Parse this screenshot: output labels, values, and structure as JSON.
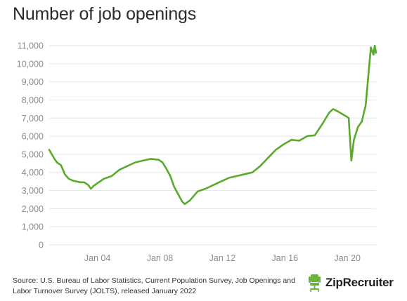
{
  "title": "Number of job openings",
  "source_text": "Source: U.S. Bureau of Labor Statistics, Current Population Survey, Job Openings and Labor Turnover Survey (JOLTS), released January 2022",
  "brand": {
    "name": "ZipRecruiter",
    "icon": "ziprecruiter-chair-logo-icon",
    "color": "#6cb33f"
  },
  "colors": {
    "line": "#5aaa2e",
    "grid": "#e6e6e6",
    "tick_text": "#8c8c8c"
  },
  "chart_data": {
    "type": "line",
    "title": "Number of job openings",
    "xlabel": "",
    "ylabel": "",
    "ylim": [
      0,
      11000
    ],
    "xlim": [
      "2000-12",
      "2021-11"
    ],
    "grid": true,
    "legend": "none",
    "yticks": [
      {
        "value": 0,
        "label": "0"
      },
      {
        "value": 1000,
        "label": "1,000"
      },
      {
        "value": 2000,
        "label": "2,000"
      },
      {
        "value": 3000,
        "label": "3,000"
      },
      {
        "value": 4000,
        "label": "4,000"
      },
      {
        "value": 5000,
        "label": "5,000"
      },
      {
        "value": 6000,
        "label": "6,000"
      },
      {
        "value": 7000,
        "label": "7,000"
      },
      {
        "value": 8000,
        "label": "8,000"
      },
      {
        "value": 9000,
        "label": "9,000"
      },
      {
        "value": 10000,
        "label": "10,000"
      },
      {
        "value": 11000,
        "label": "11,000"
      }
    ],
    "xticks": [
      {
        "value": "2004-01",
        "label": "Jan 04"
      },
      {
        "value": "2008-01",
        "label": "Jan 08"
      },
      {
        "value": "2012-01",
        "label": "Jan 12"
      },
      {
        "value": "2016-01",
        "label": "Jan 16"
      },
      {
        "value": "2020-01",
        "label": "Jan 20"
      }
    ],
    "series": [
      {
        "points": [
          [
            "2000-12",
            5250
          ],
          [
            "2001-02",
            5000
          ],
          [
            "2001-04",
            4750
          ],
          [
            "2001-06",
            4550
          ],
          [
            "2001-09",
            4400
          ],
          [
            "2001-12",
            3900
          ],
          [
            "2002-03",
            3650
          ],
          [
            "2002-06",
            3550
          ],
          [
            "2002-09",
            3500
          ],
          [
            "2002-12",
            3450
          ],
          [
            "2003-03",
            3450
          ],
          [
            "2003-06",
            3300
          ],
          [
            "2003-08",
            3100
          ],
          [
            "2003-10",
            3250
          ],
          [
            "2004-01",
            3400
          ],
          [
            "2004-06",
            3650
          ],
          [
            "2004-12",
            3800
          ],
          [
            "2005-06",
            4150
          ],
          [
            "2005-12",
            4350
          ],
          [
            "2006-06",
            4550
          ],
          [
            "2006-12",
            4650
          ],
          [
            "2007-06",
            4750
          ],
          [
            "2007-12",
            4700
          ],
          [
            "2008-03",
            4550
          ],
          [
            "2008-06",
            4200
          ],
          [
            "2008-09",
            3800
          ],
          [
            "2008-12",
            3200
          ],
          [
            "2009-03",
            2800
          ],
          [
            "2009-06",
            2400
          ],
          [
            "2009-08",
            2250
          ],
          [
            "2009-12",
            2450
          ],
          [
            "2010-03",
            2700
          ],
          [
            "2010-06",
            2950
          ],
          [
            "2010-12",
            3100
          ],
          [
            "2011-06",
            3300
          ],
          [
            "2011-12",
            3500
          ],
          [
            "2012-06",
            3700
          ],
          [
            "2012-12",
            3800
          ],
          [
            "2013-06",
            3900
          ],
          [
            "2013-12",
            4000
          ],
          [
            "2014-06",
            4350
          ],
          [
            "2014-12",
            4800
          ],
          [
            "2015-06",
            5250
          ],
          [
            "2015-12",
            5550
          ],
          [
            "2016-06",
            5800
          ],
          [
            "2016-12",
            5750
          ],
          [
            "2017-06",
            6000
          ],
          [
            "2017-12",
            6050
          ],
          [
            "2018-06",
            6700
          ],
          [
            "2018-11",
            7300
          ],
          [
            "2019-02",
            7500
          ],
          [
            "2019-06",
            7350
          ],
          [
            "2019-12",
            7100
          ],
          [
            "2020-02",
            7000
          ],
          [
            "2020-04",
            4650
          ],
          [
            "2020-06",
            5800
          ],
          [
            "2020-09",
            6500
          ],
          [
            "2020-12",
            6800
          ],
          [
            "2021-03",
            7700
          ],
          [
            "2021-05",
            9300
          ],
          [
            "2021-07",
            10900
          ],
          [
            "2021-09",
            10500
          ],
          [
            "2021-10",
            11000
          ],
          [
            "2021-11",
            10600
          ]
        ]
      }
    ]
  }
}
